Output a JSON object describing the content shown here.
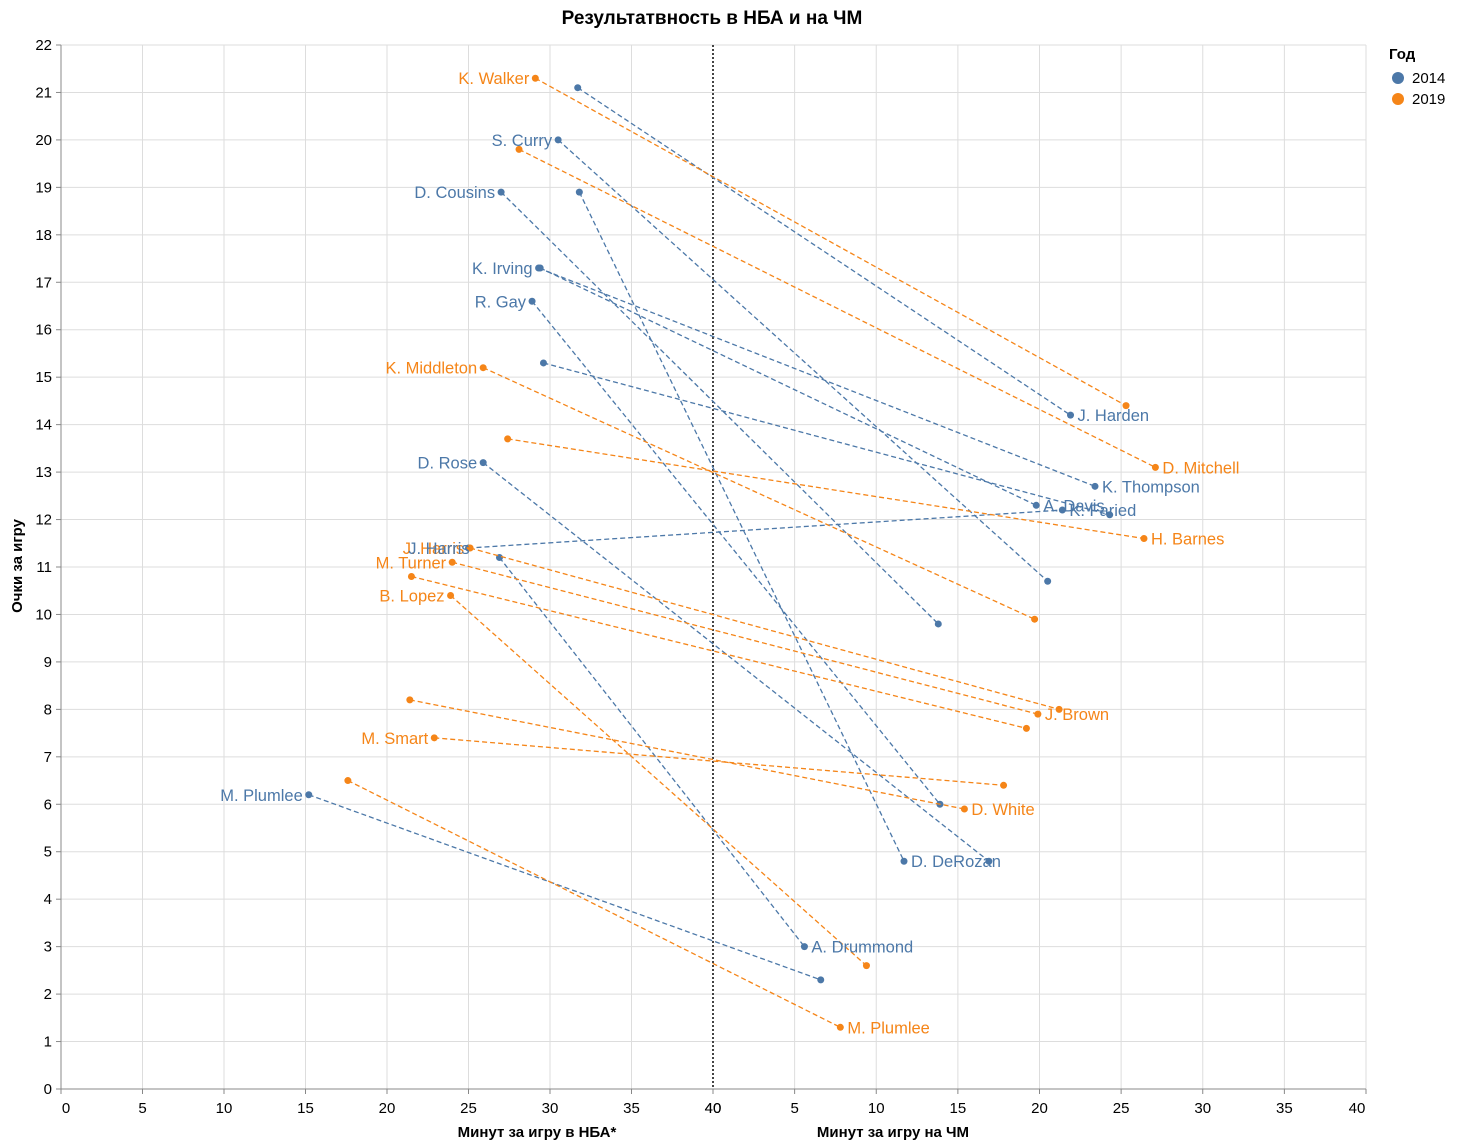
{
  "chart_data": {
    "type": "slope",
    "title": "Результатвность в НБА и на ЧМ",
    "ylabel": "Очки за игру",
    "xlabel_left": "Минут за игру в НБА*",
    "xlabel_right": "Минут за игру на ЧМ",
    "ylim": [
      0,
      22
    ],
    "y_ticks": [
      "0",
      "1",
      "2",
      "3",
      "4",
      "5",
      "6",
      "7",
      "8",
      "9",
      "10",
      "11",
      "12",
      "13",
      "14",
      "15",
      "16",
      "17",
      "18",
      "19",
      "20",
      "21",
      "22"
    ],
    "x_left_range": [
      0,
      40
    ],
    "x_right_range": [
      0,
      40
    ],
    "x_left_ticks": [
      "0",
      "5",
      "10",
      "15",
      "20",
      "25",
      "30",
      "35",
      "40"
    ],
    "x_right_ticks": [
      "5",
      "10",
      "15",
      "20",
      "25",
      "30",
      "35",
      "40"
    ],
    "divider_label": "40",
    "legend": {
      "title": "Год",
      "items": [
        {
          "name": "2014",
          "color": "#4c78a8"
        },
        {
          "name": "2019",
          "color": "#f58518"
        }
      ]
    },
    "colors": {
      "2014": "#4c78a8",
      "2019": "#f58518"
    },
    "series": [
      {
        "year": "2014",
        "nba_min": 31.7,
        "nba_pts": 21.1,
        "wc_min": 21.9,
        "wc_pts": 14.2,
        "label_left": "",
        "label_right": "J. Harden"
      },
      {
        "year": "2014",
        "nba_min": 30.5,
        "nba_pts": 20.0,
        "wc_min": 20.5,
        "wc_pts": 10.7,
        "label_left": "S. Curry",
        "label_right": ""
      },
      {
        "year": "2014",
        "nba_min": 27.0,
        "nba_pts": 18.9,
        "wc_min": 13.8,
        "wc_pts": 9.8,
        "label_left": "D. Cousins",
        "label_right": ""
      },
      {
        "year": "2014",
        "nba_min": 31.8,
        "nba_pts": 18.9,
        "wc_min": 11.7,
        "wc_pts": 4.8,
        "label_left": "",
        "label_right": "D. DeRozan"
      },
      {
        "year": "2014",
        "nba_min": 29.3,
        "nba_pts": 17.3,
        "wc_min": 23.4,
        "wc_pts": 12.7,
        "label_left": "K. Irving",
        "label_right": ""
      },
      {
        "year": "2014",
        "nba_min": 29.4,
        "nba_pts": 17.3,
        "wc_min": 19.8,
        "wc_pts": 12.3,
        "label_left": "",
        "label_right": ""
      },
      {
        "year": "2014",
        "nba_min": 28.9,
        "nba_pts": 16.6,
        "wc_min": 13.9,
        "wc_pts": 6.0,
        "label_left": "R. Gay",
        "label_right": ""
      },
      {
        "year": "2014",
        "nba_min": 29.6,
        "nba_pts": 15.3,
        "wc_min": 24.3,
        "wc_pts": 12.1,
        "label_left": "",
        "label_right": ""
      },
      {
        "year": "2014",
        "nba_min": 25.9,
        "nba_pts": 13.2,
        "wc_min": 16.9,
        "wc_pts": 4.8,
        "label_left": "D. Rose",
        "label_right": ""
      },
      {
        "year": "2014",
        "nba_min": 25.0,
        "nba_pts": 11.4,
        "wc_min": 21.4,
        "wc_pts": 12.2,
        "label_left": "",
        "label_right": ""
      },
      {
        "year": "2014",
        "nba_min": 26.9,
        "nba_pts": 11.2,
        "wc_min": 5.6,
        "wc_pts": 3.0,
        "label_left": "",
        "label_right": "A. Drummond"
      },
      {
        "year": "2014",
        "nba_min": 15.2,
        "nba_pts": 6.2,
        "wc_min": 6.6,
        "wc_pts": 2.3,
        "label_left": "M. Plumlee",
        "label_right": ""
      },
      {
        "year": "2019",
        "nba_min": 29.1,
        "nba_pts": 21.3,
        "wc_min": 25.3,
        "wc_pts": 14.4,
        "label_left": "K. Walker",
        "label_right": ""
      },
      {
        "year": "2019",
        "nba_min": 28.1,
        "nba_pts": 19.8,
        "wc_min": 27.1,
        "wc_pts": 13.1,
        "label_left": "",
        "label_right": "D. Mitchell"
      },
      {
        "year": "2019",
        "nba_min": 25.9,
        "nba_pts": 15.2,
        "wc_min": 19.7,
        "wc_pts": 9.9,
        "label_left": "K. Middleton",
        "label_right": ""
      },
      {
        "year": "2019",
        "nba_min": 27.4,
        "nba_pts": 13.7,
        "wc_min": 26.4,
        "wc_pts": 11.6,
        "label_left": "",
        "label_right": "H. Barnes"
      },
      {
        "year": "2019",
        "nba_min": 25.1,
        "nba_pts": 11.4,
        "wc_min": 21.2,
        "wc_pts": 8.0,
        "label_left": "J. Harris",
        "label_right": ""
      },
      {
        "year": "2019",
        "nba_min": 24.0,
        "nba_pts": 11.1,
        "wc_min": 19.9,
        "wc_pts": 7.9,
        "label_left": "M. Turner",
        "label_right": ""
      },
      {
        "year": "2019",
        "nba_min": 21.5,
        "nba_pts": 10.8,
        "wc_min": 19.2,
        "wc_pts": 7.6,
        "label_left": "",
        "label_right": ""
      },
      {
        "year": "2019",
        "nba_min": 23.9,
        "nba_pts": 10.4,
        "wc_min": 9.4,
        "wc_pts": 2.6,
        "label_left": "B. Lopez",
        "label_right": ""
      },
      {
        "year": "2019",
        "nba_min": 21.4,
        "nba_pts": 8.2,
        "wc_min": 15.4,
        "wc_pts": 5.9,
        "label_left": "",
        "label_right": "D. White"
      },
      {
        "year": "2019",
        "nba_min": 22.9,
        "nba_pts": 7.4,
        "wc_min": 17.8,
        "wc_pts": 6.4,
        "label_left": "M. Smart",
        "label_right": ""
      },
      {
        "year": "2019",
        "nba_min": 17.6,
        "nba_pts": 6.5,
        "wc_min": 7.8,
        "wc_pts": 1.3,
        "label_left": "",
        "label_right": "M. Plumlee"
      }
    ],
    "extra_labels": [
      {
        "year": "2014",
        "text": "A. Davis",
        "wc_min": 19.8,
        "wc_pts": 12.3
      },
      {
        "year": "2014",
        "text": "K. Thompson",
        "wc_min": 23.4,
        "wc_pts": 12.7
      },
      {
        "year": "2014",
        "text": "K. Faried",
        "wc_min": 21.4,
        "wc_pts": 12.2
      },
      {
        "year": "2014",
        "text": "J. Harris",
        "nba_min": 22.9,
        "nba_pts": 11.4,
        "anchor": "left"
      },
      {
        "year": "2019",
        "text": "J. Brown",
        "wc_min": 19.9,
        "wc_pts": 7.9
      }
    ]
  }
}
